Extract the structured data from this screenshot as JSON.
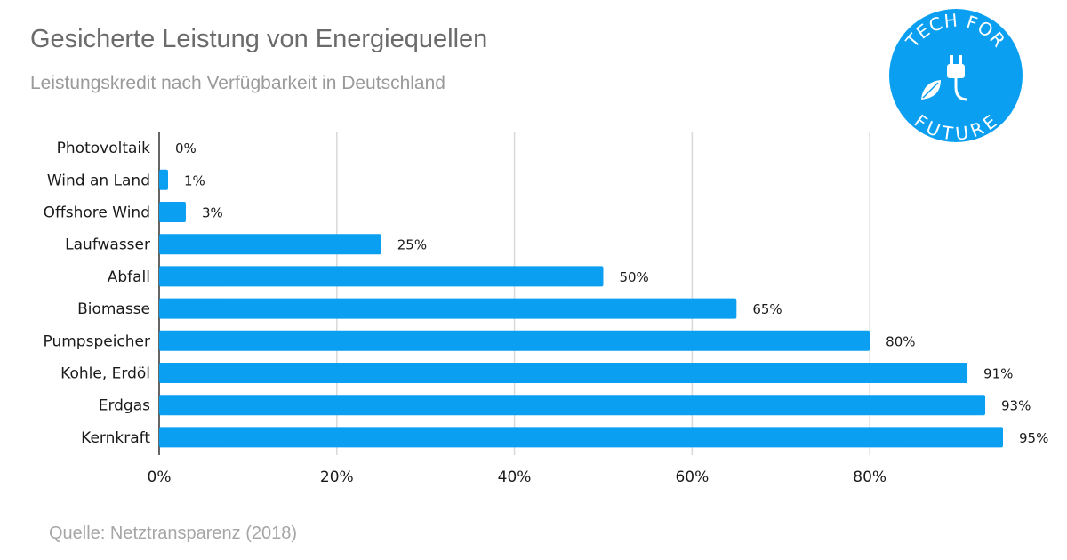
{
  "title": "Gesicherte Leistung von Energiequellen",
  "subtitle": "Leistungskredit nach Verfügbarkeit in Deutschland",
  "source": "Quelle: Netztransparenz (2018)",
  "logo": {
    "text": "TECH FOR FUTURE",
    "icon": "plug-leaf-icon",
    "color": "#0a9ff0"
  },
  "chart_data": {
    "type": "bar",
    "orientation": "horizontal",
    "categories": [
      "Photovoltaik",
      "Wind an Land",
      "Offshore Wind",
      "Laufwasser",
      "Abfall",
      "Biomasse",
      "Pumpspeicher",
      "Kohle, Erdöl",
      "Erdgas",
      "Kernkraft"
    ],
    "values": [
      0,
      1,
      3,
      25,
      50,
      65,
      80,
      91,
      93,
      95
    ],
    "value_labels": [
      "0%",
      "1%",
      "3%",
      "25%",
      "50%",
      "65%",
      "80%",
      "91%",
      "93%",
      "95%"
    ],
    "xlim": [
      0,
      95
    ],
    "xticks": [
      0,
      20,
      40,
      60,
      80
    ],
    "xtick_labels": [
      "0%",
      "20%",
      "40%",
      "60%",
      "80%"
    ],
    "grid": "vertical",
    "bar_color": "#0a9ff0",
    "grid_color": "#d9d9d9"
  }
}
